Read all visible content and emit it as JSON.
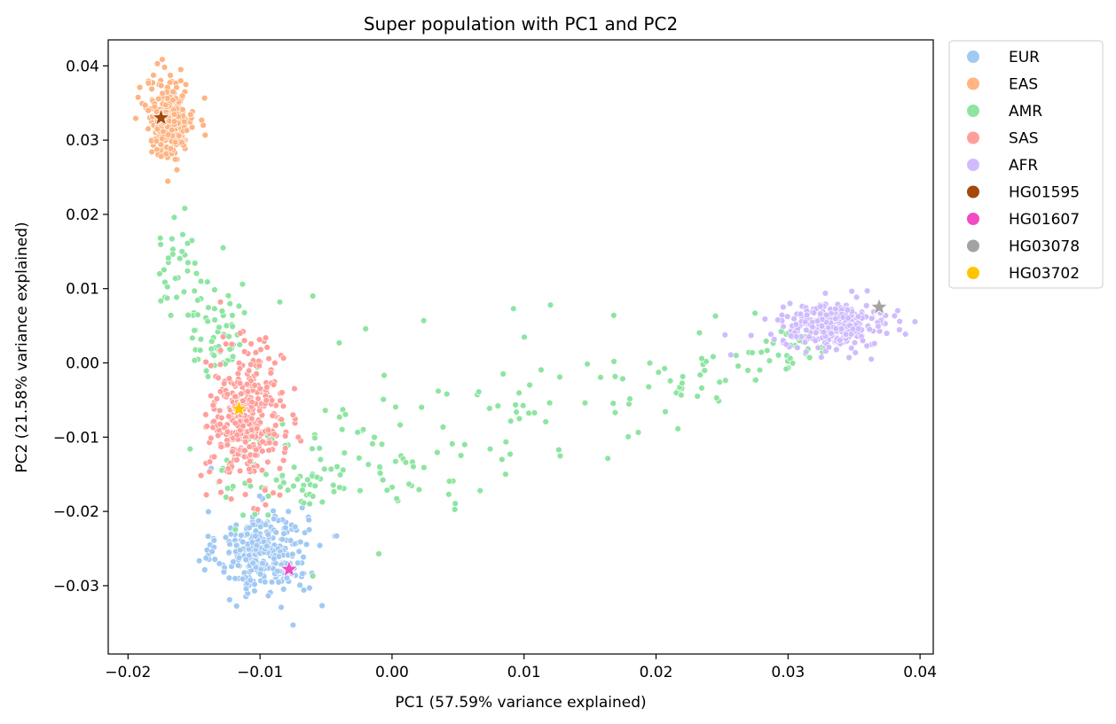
{
  "chart_data": {
    "type": "scatter",
    "title": "Super population with PC1 and PC2",
    "xlabel": "PC1 (57.59% variance explained)",
    "ylabel": "PC2 (21.58% variance explained)",
    "xlim": [
      -0.0215,
      0.041
    ],
    "ylim": [
      -0.0392,
      0.0435
    ],
    "xticks": [
      -0.02,
      -0.01,
      0.0,
      0.01,
      0.02,
      0.03,
      0.04
    ],
    "xtick_labels": [
      "−0.02",
      "−0.01",
      "0.00",
      "0.01",
      "0.02",
      "0.03",
      "0.04"
    ],
    "yticks": [
      -0.03,
      -0.02,
      -0.01,
      0.0,
      0.01,
      0.02,
      0.03,
      0.04
    ],
    "ytick_labels": [
      "−0.03",
      "−0.02",
      "−0.01",
      "0.00",
      "0.01",
      "0.02",
      "0.03",
      "0.04"
    ],
    "grid": false,
    "legend_position": "outside-upper-right",
    "series": [
      {
        "name": "EUR",
        "color": "#a1c9f4",
        "marker": "circle",
        "clusters": [
          {
            "cx": -0.0098,
            "cy": -0.0255,
            "sx": 0.0017,
            "sy": 0.0028,
            "n": 320
          }
        ],
        "points": [
          [
            -0.0137,
            -0.0142
          ],
          [
            -0.0053,
            -0.0327
          ],
          [
            -0.0075,
            -0.0353
          ],
          [
            -0.0042,
            -0.0233
          ],
          [
            -0.0126,
            -0.0235
          ],
          [
            -0.0068,
            -0.0195
          ]
        ]
      },
      {
        "name": "EAS",
        "color": "#ffb482",
        "marker": "circle",
        "clusters": [
          {
            "cx": -0.0168,
            "cy": 0.033,
            "sx": 0.0009,
            "sy": 0.0026,
            "n": 280
          }
        ],
        "points": [
          [
            -0.0163,
            0.026
          ],
          [
            -0.016,
            0.0395
          ],
          [
            -0.0187,
            0.0347
          ],
          [
            -0.0143,
            0.032
          ]
        ]
      },
      {
        "name": "AMR",
        "color": "#8de5a1",
        "marker": "circle",
        "clusters": [
          {
            "cx": -0.016,
            "cy": 0.012,
            "sx": 0.0012,
            "sy": 0.003,
            "n": 40
          },
          {
            "cx": -0.013,
            "cy": 0.003,
            "sx": 0.0012,
            "sy": 0.003,
            "n": 50
          },
          {
            "cx": -0.008,
            "cy": -0.015,
            "sx": 0.0025,
            "sy": 0.003,
            "n": 70
          },
          {
            "cx": 0.0,
            "cy": -0.012,
            "sx": 0.004,
            "sy": 0.004,
            "n": 50
          },
          {
            "cx": 0.011,
            "cy": -0.006,
            "sx": 0.0045,
            "sy": 0.004,
            "n": 35
          },
          {
            "cx": 0.022,
            "cy": -0.003,
            "sx": 0.0035,
            "sy": 0.0025,
            "n": 35
          },
          {
            "cx": 0.03,
            "cy": 0.002,
            "sx": 0.002,
            "sy": 0.0015,
            "n": 35
          }
        ],
        "points": [
          [
            -0.0157,
            0.0208
          ],
          [
            -0.0165,
            0.0196
          ],
          [
            -0.0128,
            0.0155
          ],
          [
            -0.006,
            0.009
          ],
          [
            -0.0085,
            0.0082
          ],
          [
            -0.004,
            0.0027
          ],
          [
            -0.002,
            0.0046
          ],
          [
            0.0024,
            0.0057
          ],
          [
            0.0092,
            0.0073
          ],
          [
            0.012,
            0.0078
          ],
          [
            0.0168,
            0.0064
          ],
          [
            0.0245,
            0.0063
          ],
          [
            0.0275,
            0.0067
          ],
          [
            -0.0153,
            -0.0116
          ],
          [
            0.0043,
            -0.0177
          ],
          [
            -0.001,
            -0.0257
          ],
          [
            -0.006,
            -0.0287
          ],
          [
            0.0055,
            -0.011
          ],
          [
            0.0086,
            -0.015
          ]
        ]
      },
      {
        "name": "SAS",
        "color": "#ff9f9b",
        "marker": "circle",
        "clusters": [
          {
            "cx": -0.011,
            "cy": -0.0075,
            "sx": 0.0014,
            "sy": 0.0045,
            "n": 360
          }
        ],
        "points": [
          [
            -0.013,
            0.0082
          ],
          [
            -0.0115,
            0.004
          ],
          [
            -0.0075,
            -0.007
          ],
          [
            -0.009,
            -0.0175
          ]
        ]
      },
      {
        "name": "AFR",
        "color": "#d0bbff",
        "marker": "circle",
        "clusters": [
          {
            "cx": 0.0335,
            "cy": 0.005,
            "sx": 0.002,
            "sy": 0.0014,
            "n": 320
          }
        ],
        "points": [
          [
            0.0363,
            0.0005
          ],
          [
            0.0272,
            0.0037
          ],
          [
            0.036,
            0.0097
          ]
        ]
      },
      {
        "name": "HG01595",
        "color": "#a2490b",
        "marker": "star",
        "points": [
          [
            -0.0175,
            0.033
          ]
        ]
      },
      {
        "name": "HG01607",
        "color": "#f14cc1",
        "marker": "star",
        "points": [
          [
            -0.0078,
            -0.0278
          ]
        ]
      },
      {
        "name": "HG03078",
        "color": "#a3a3a3",
        "marker": "star",
        "points": [
          [
            0.0369,
            0.0075
          ]
        ]
      },
      {
        "name": "HG03702",
        "color": "#ffc400",
        "marker": "star",
        "points": [
          [
            -0.0116,
            -0.0062
          ]
        ]
      }
    ]
  }
}
